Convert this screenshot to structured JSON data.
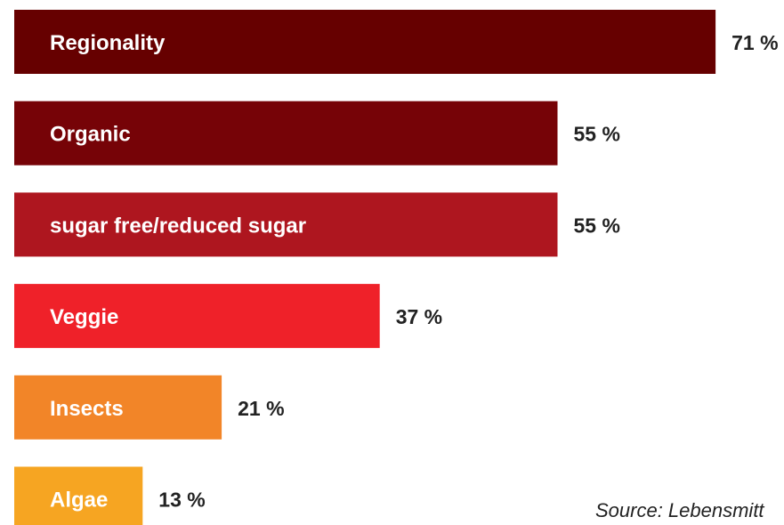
{
  "chart_data": {
    "type": "bar",
    "orientation": "horizontal",
    "categories": [
      "Regionality",
      "Organic",
      "sugar free/reduced sugar",
      "Veggie",
      "Insects",
      "Algae"
    ],
    "values": [
      71,
      55,
      55,
      37,
      21,
      13
    ],
    "value_labels": [
      "71 %",
      "55 %",
      "55 %",
      "37 %",
      "21 %",
      "13 %"
    ],
    "colors": [
      "#660000",
      "#760307",
      "#ae161f",
      "#ef2129",
      "#f28528",
      "#f6a522"
    ],
    "unit": "%",
    "title": "",
    "xlabel": "",
    "ylabel": "",
    "xlim": [
      0,
      71
    ],
    "grid": false,
    "legend": "none"
  },
  "source_note": "Source: Lebensmitt"
}
